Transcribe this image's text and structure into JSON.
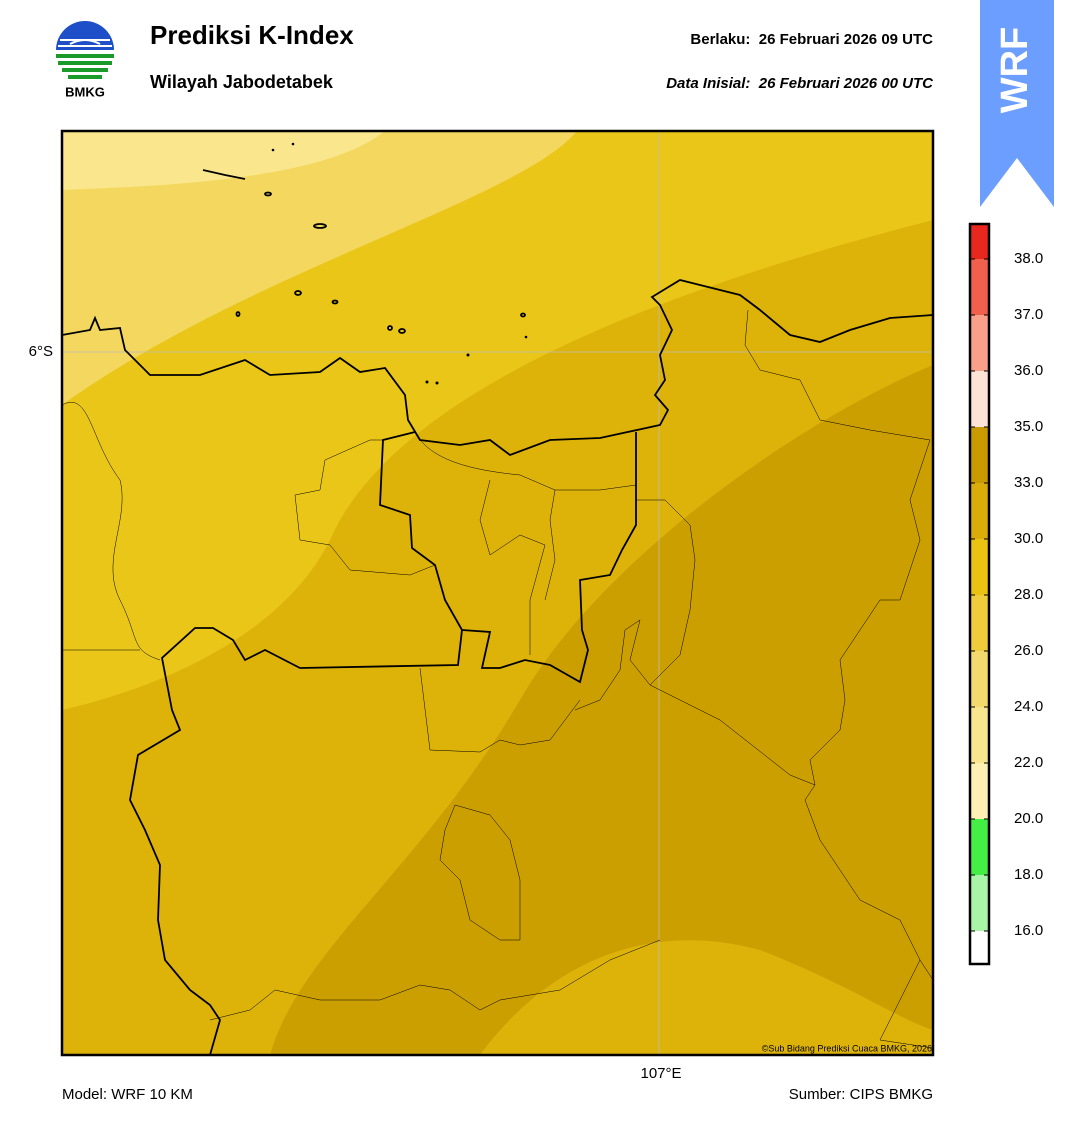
{
  "header": {
    "title": "Prediksi K-Index",
    "subtitle": "Wilayah Jabodetabek",
    "valid": "Berlaku:  26 Februari 2026 09 UTC",
    "initial": "Data Inisial:  26 Februari 2026 00 UTC"
  },
  "logo": {
    "text": "BMKG"
  },
  "badge": {
    "text": "WRF"
  },
  "map": {
    "lat_label": "6°S",
    "lon_label": "107°E",
    "credit": "©Sub Bidang Prediksi Cuaca BMKG, 2026"
  },
  "colorbar": {
    "ticks": [
      "38.0",
      "37.0",
      "36.0",
      "35.0",
      "33.0",
      "30.0",
      "28.0",
      "26.0",
      "24.0",
      "22.0",
      "20.0",
      "18.0",
      "16.0"
    ],
    "colors": [
      "#e8271e",
      "#f0604c",
      "#f8a08a",
      "#fde2d6",
      "#c89a00",
      "#d9ac0a",
      "#e9c212",
      "#efcd3a",
      "#f4da6c",
      "#f8e58e",
      "#fcf0b2",
      "#44ee44",
      "#a8f5a8",
      "#ffffff"
    ]
  },
  "footer": {
    "model": "Model: WRF 10 KM",
    "source": "Sumber: CIPS BMKG"
  }
}
